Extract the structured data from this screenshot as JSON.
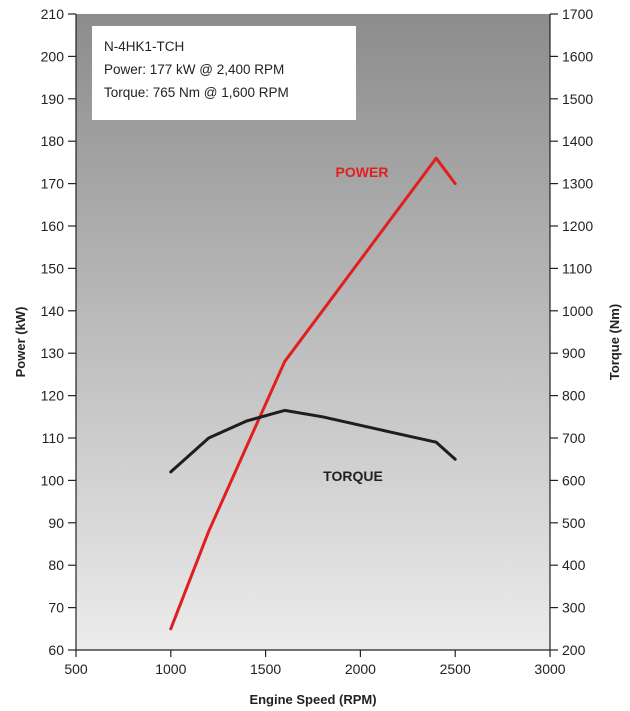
{
  "chart_data": {
    "type": "line",
    "xlabel": "Engine Speed (RPM)",
    "ylabel": "Power (kW)",
    "y2label": "Torque (Nm)",
    "xlim": [
      500,
      3000
    ],
    "ylim": [
      60,
      210
    ],
    "y2lim": [
      200,
      1700
    ],
    "xticks": [
      500,
      1000,
      1500,
      2000,
      2500,
      3000
    ],
    "yticks": [
      60,
      70,
      80,
      90,
      100,
      110,
      120,
      130,
      140,
      150,
      160,
      170,
      180,
      190,
      200,
      210
    ],
    "y2ticks": [
      200,
      300,
      400,
      500,
      600,
      700,
      800,
      900,
      1000,
      1100,
      1200,
      1300,
      1400,
      1500,
      1600,
      1700
    ],
    "grid": false,
    "background": "gradient grey",
    "series": [
      {
        "name": "POWER",
        "axis": "left",
        "color": "#e02020",
        "x": [
          1000,
          1200,
          1400,
          1600,
          1800,
          2000,
          2200,
          2400,
          2500
        ],
        "y": [
          65,
          88,
          108,
          128,
          140,
          152,
          164,
          176,
          170
        ]
      },
      {
        "name": "TORQUE",
        "axis": "right",
        "color": "#1e1e1e",
        "x": [
          1000,
          1200,
          1400,
          1600,
          1800,
          2000,
          2200,
          2400,
          2500
        ],
        "y": [
          620,
          700,
          740,
          765,
          750,
          730,
          710,
          690,
          650
        ]
      }
    ],
    "info_box": {
      "lines": [
        "N-4HK1-TCH",
        "Power: 177 kW @ 2,400 RPM",
        "Torque: 765 Nm @ 1,600 RPM"
      ]
    }
  }
}
